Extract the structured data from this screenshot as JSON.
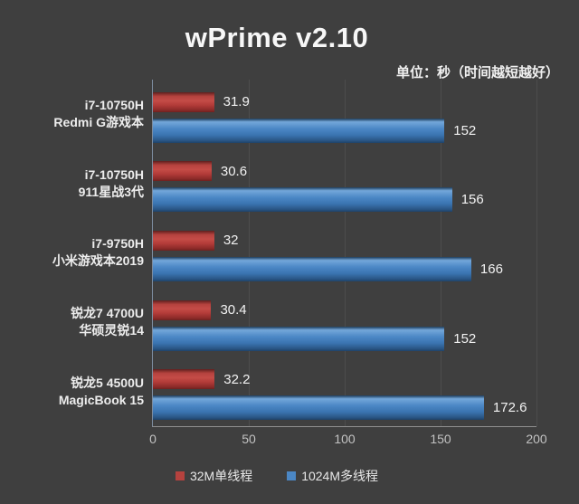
{
  "title": "wPrime v2.10",
  "subtitle": "单位：秒（时间越短越好）",
  "colors": {
    "background": "#3f3f3f",
    "title_text": "#f7f7f7",
    "single_thread_red": "#b5423e",
    "multi_thread_blue": "#4b87c5",
    "axis_line": "#8f8f8f",
    "tick_text": "#c2c2c2"
  },
  "chart_data": {
    "type": "bar",
    "orientation": "horizontal",
    "title": "wPrime v2.10",
    "subtitle": "单位：秒（时间越短越好）",
    "xlabel": "",
    "ylabel": "",
    "xlim": [
      0,
      200
    ],
    "x_ticks": [
      0,
      50,
      100,
      150,
      200
    ],
    "grid": true,
    "legend_position": "bottom",
    "value_labels": true,
    "categories": [
      {
        "lines": [
          "i7-10750H",
          "Redmi G游戏本"
        ]
      },
      {
        "lines": [
          "i7-10750H",
          "911星战3代"
        ]
      },
      {
        "lines": [
          "i7-9750H",
          "小米游戏本2019"
        ]
      },
      {
        "lines": [
          "锐龙7 4700U",
          "华硕灵锐14"
        ]
      },
      {
        "lines": [
          "锐龙5 4500U",
          "MagicBook 15"
        ]
      }
    ],
    "series": [
      {
        "name": "32M单线程",
        "legend_color": "#b5423e",
        "values": [
          31.9,
          30.6,
          32,
          30.4,
          32.2
        ]
      },
      {
        "name": "1024M多线程",
        "legend_color": "#4b87c5",
        "values": [
          152,
          156,
          166,
          152,
          172.6
        ]
      }
    ]
  }
}
